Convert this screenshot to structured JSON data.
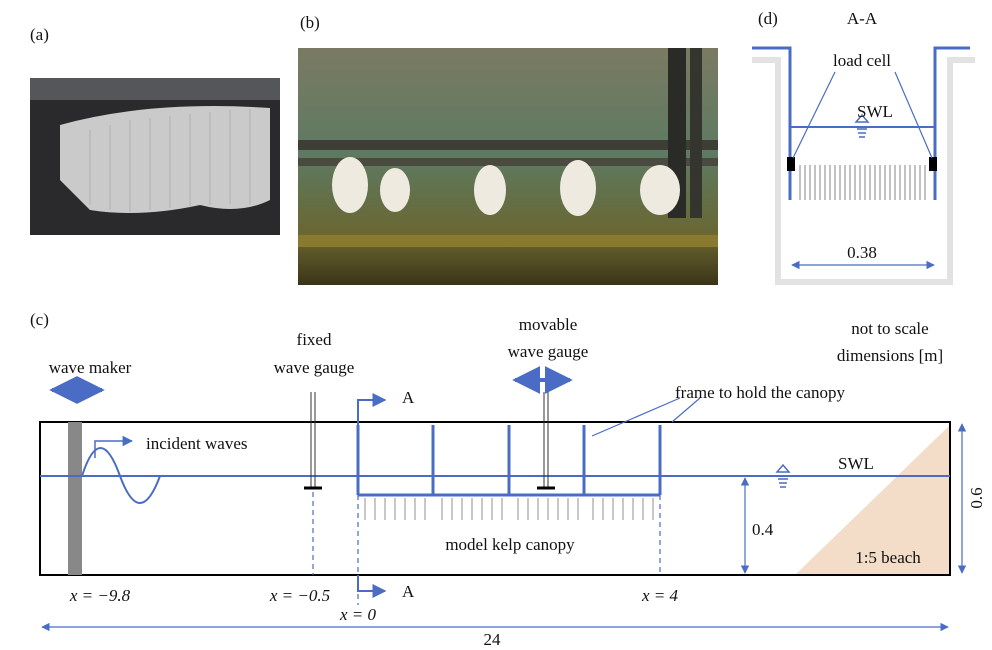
{
  "panels": {
    "a": "(a)",
    "b": "(b)",
    "c": "(c)",
    "d": "(d)"
  },
  "section_view": {
    "title": "A-A",
    "load_cell": "load cell",
    "swl": "SWL",
    "width": "0.38"
  },
  "flume": {
    "note": [
      "not to scale",
      "dimensions [m]"
    ],
    "wave_maker": "wave maker",
    "fixed_gauge": [
      "fixed",
      "wave gauge"
    ],
    "movable_gauge": [
      "movable",
      "wave gauge"
    ],
    "section_marker_top": "A",
    "section_marker_bottom": "A",
    "frame": "frame to hold the canopy",
    "incident_waves": "incident waves",
    "swl": "SWL",
    "depth": "0.6",
    "water_depth": "0.4",
    "canopy": "model kelp canopy",
    "beach": "1:5 beach",
    "positions": [
      "x = −9.8",
      "x = −0.5",
      "x = 0",
      "x = 4"
    ],
    "length": "24"
  }
}
